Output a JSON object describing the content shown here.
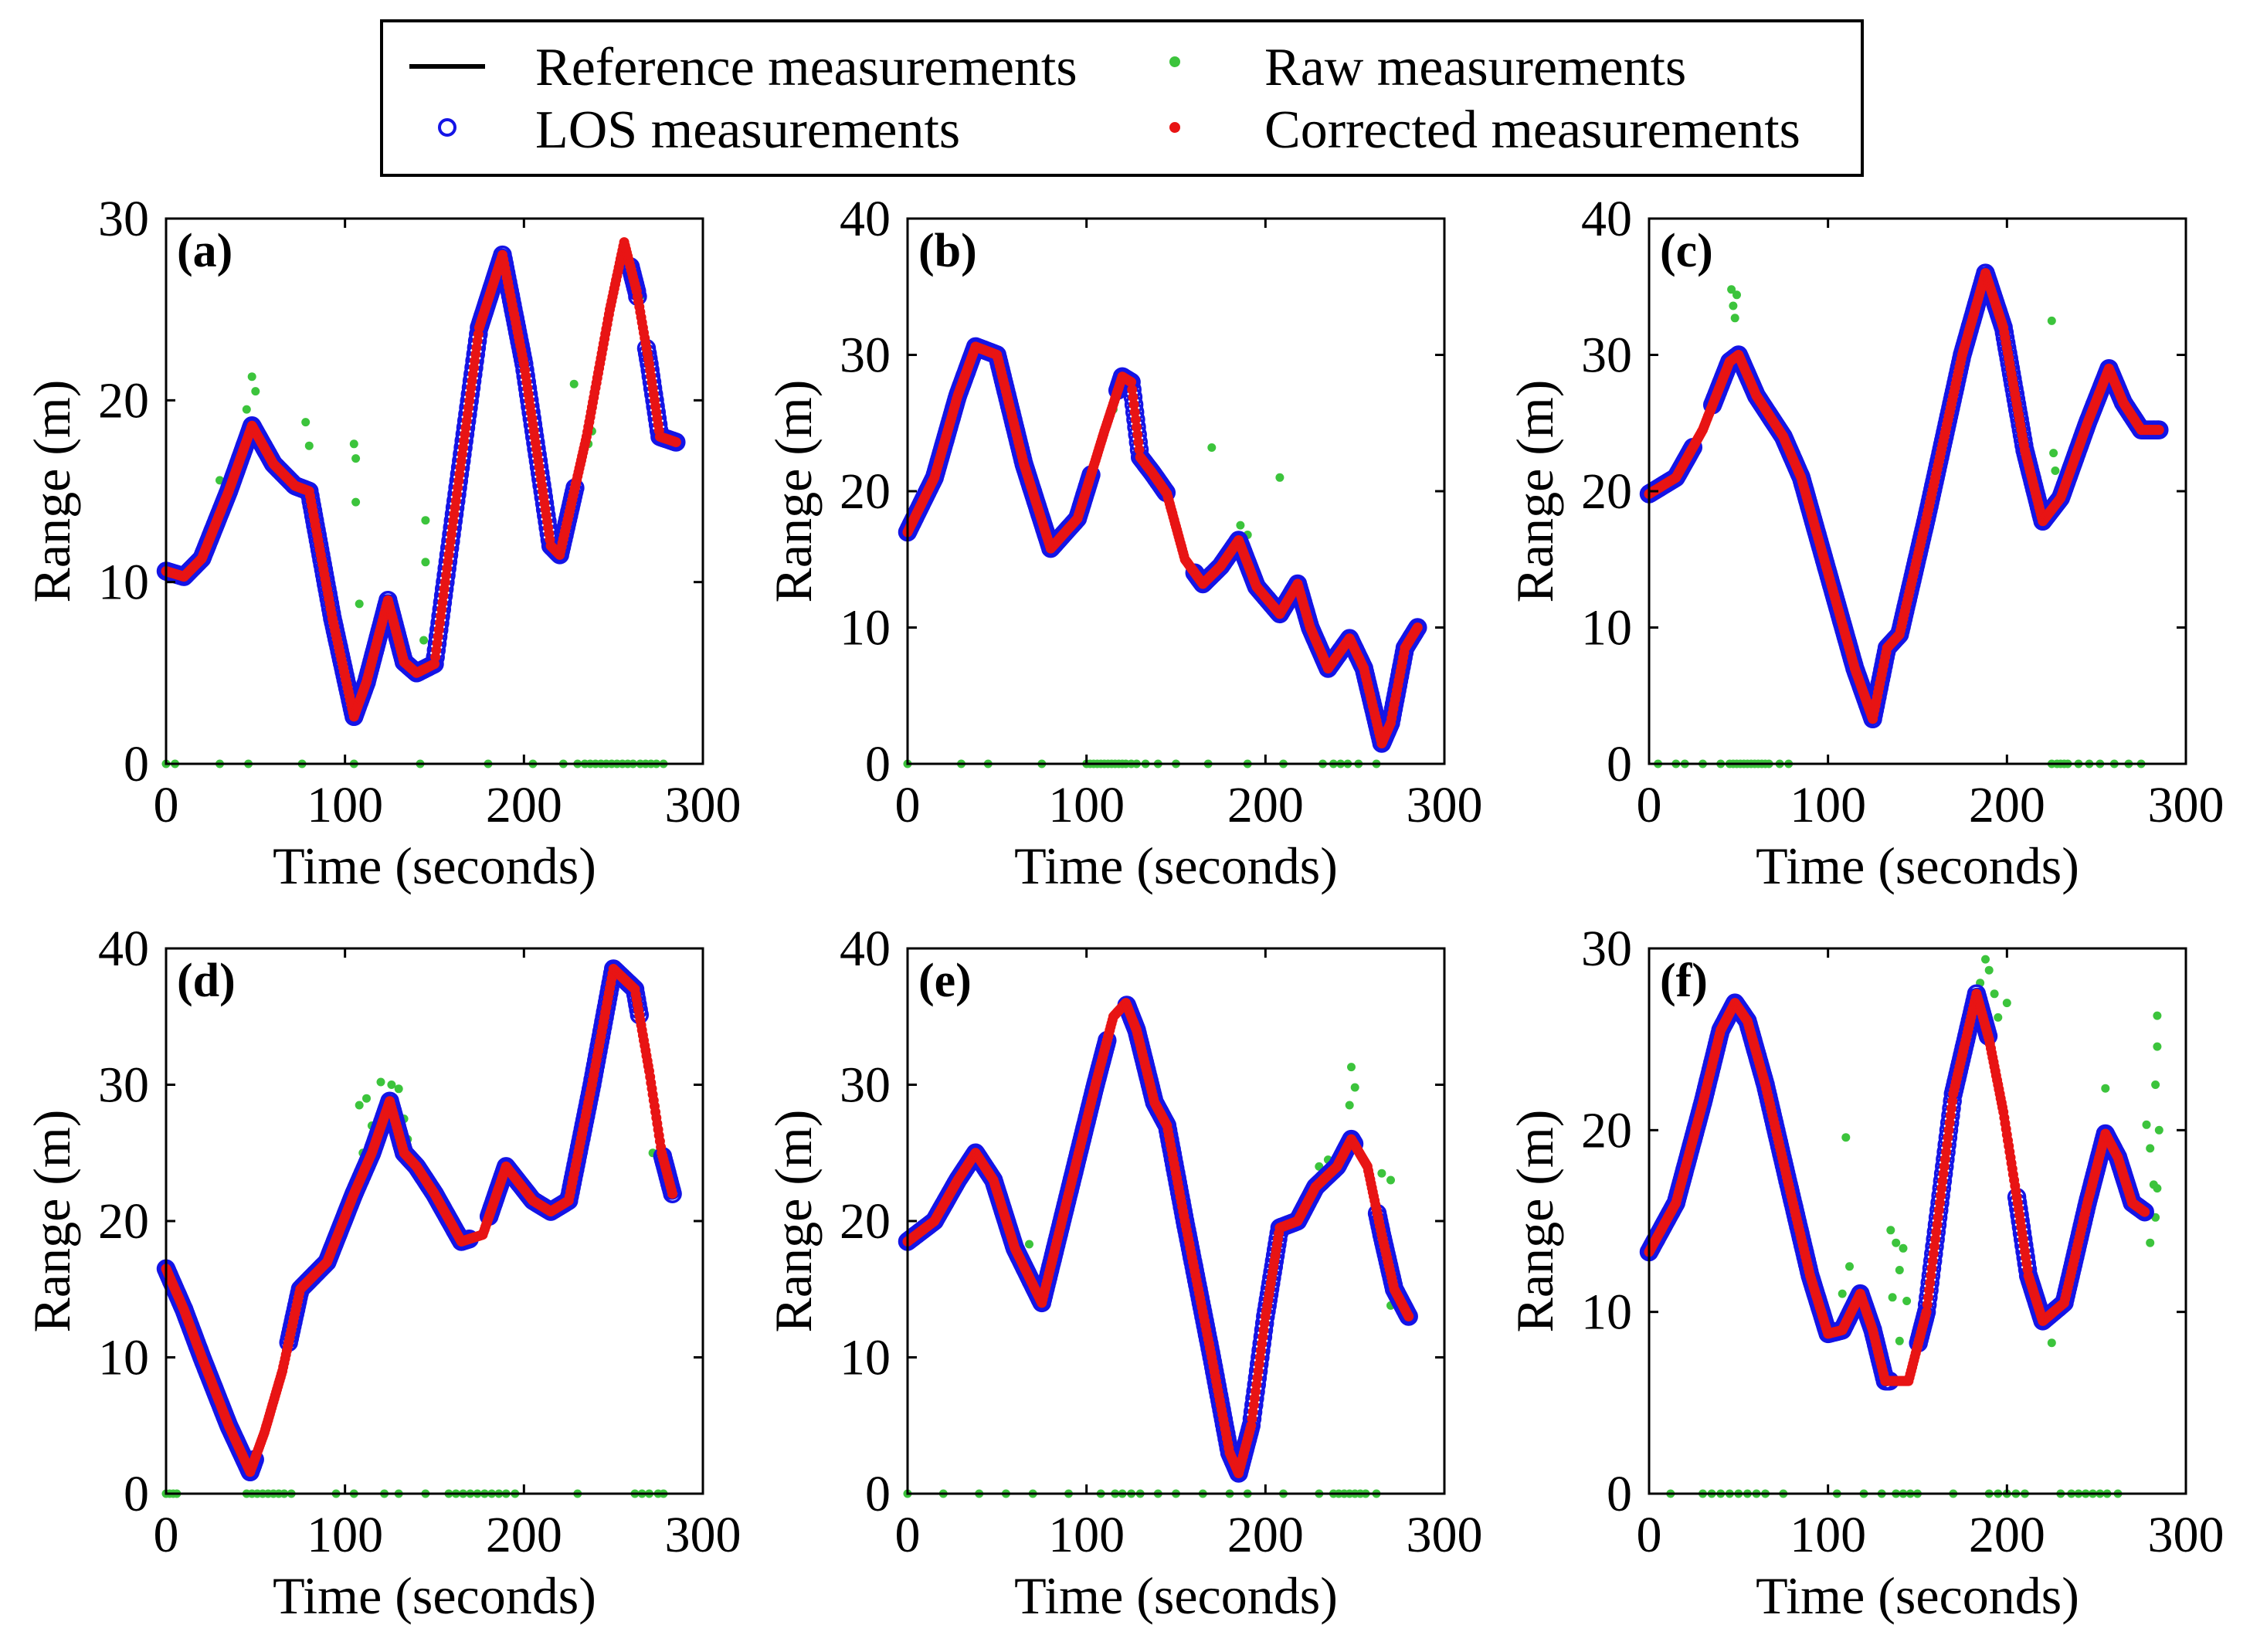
{
  "colors": {
    "reference": "#000000",
    "raw": "#3cc43c",
    "los": "#1414e6",
    "corrected": "#e81414"
  },
  "legend": {
    "items": [
      {
        "key": "reference",
        "label": "Reference measurements",
        "marker": "line"
      },
      {
        "key": "raw",
        "label": "Raw measurements",
        "marker": "dot"
      },
      {
        "key": "los",
        "label": "LOS measurements",
        "marker": "circle"
      },
      {
        "key": "corrected",
        "label": "Corrected measurements",
        "marker": "dot"
      }
    ]
  },
  "chart_data": [
    {
      "id": "a",
      "panel_label": "(a)",
      "type": "line",
      "xlabel": "Time (seconds)",
      "ylabel": "Range (m)",
      "xlim": [
        0,
        300
      ],
      "ylim": [
        0,
        30
      ],
      "xticks": [
        0,
        100,
        200,
        300
      ],
      "yticks": [
        0,
        10,
        20,
        30
      ],
      "reference": [
        [
          0,
          10.6
        ],
        [
          10,
          10.3
        ],
        [
          20,
          11.3
        ],
        [
          35,
          15
        ],
        [
          48,
          18.6
        ],
        [
          60,
          16.5
        ],
        [
          72,
          15.3
        ],
        [
          80,
          15
        ],
        [
          93,
          8
        ],
        [
          105,
          2.6
        ],
        [
          112,
          4.5
        ],
        [
          124,
          9
        ],
        [
          133,
          5.6
        ],
        [
          140,
          5
        ],
        [
          150,
          5.5
        ],
        [
          160,
          13
        ],
        [
          175,
          24
        ],
        [
          188,
          28
        ],
        [
          200,
          22
        ],
        [
          215,
          12
        ],
        [
          220,
          11.5
        ],
        [
          235,
          18
        ],
        [
          248,
          25
        ],
        [
          256,
          28.7
        ],
        [
          263,
          26
        ],
        [
          270,
          22
        ],
        [
          276,
          18
        ],
        [
          285,
          17.7
        ]
      ],
      "los_gaps": [
        [
          229,
          259
        ],
        [
          264,
          268
        ]
      ],
      "raw_extra": [
        [
          30,
          15.6
        ],
        [
          40,
          17
        ],
        [
          45,
          19.5
        ],
        [
          48,
          21.3
        ],
        [
          50,
          20.5
        ],
        [
          78,
          18.8
        ],
        [
          80,
          17.5
        ],
        [
          105,
          17.6
        ],
        [
          106,
          16.8
        ],
        [
          106,
          14.4
        ],
        [
          108,
          8.8
        ],
        [
          145,
          13.4
        ],
        [
          145,
          11.1
        ],
        [
          144,
          6.8
        ],
        [
          228,
          20.9
        ],
        [
          236,
          17.6
        ],
        [
          238,
          18.3
        ],
        [
          266,
          25.8
        ]
      ],
      "zero_raw": [
        0,
        5,
        30,
        46,
        76,
        105,
        142,
        180,
        205,
        222,
        230,
        234,
        237,
        240,
        243,
        246,
        249,
        252,
        255,
        258,
        261,
        265,
        268,
        271,
        274,
        278
      ]
    },
    {
      "id": "b",
      "panel_label": "(b)",
      "type": "line",
      "xlabel": "Time (seconds)",
      "ylabel": "Range (m)",
      "xlim": [
        0,
        300
      ],
      "ylim": [
        0,
        40
      ],
      "xticks": [
        0,
        100,
        200,
        300
      ],
      "yticks": [
        0,
        10,
        20,
        30,
        40
      ],
      "reference": [
        [
          0,
          17
        ],
        [
          15,
          21
        ],
        [
          28,
          27
        ],
        [
          38,
          30.6
        ],
        [
          50,
          30
        ],
        [
          65,
          22
        ],
        [
          80,
          15.8
        ],
        [
          95,
          18
        ],
        [
          110,
          24.4
        ],
        [
          120,
          28.4
        ],
        [
          125,
          28
        ],
        [
          130,
          22.5
        ],
        [
          137,
          21.3
        ],
        [
          145,
          19.8
        ],
        [
          155,
          15
        ],
        [
          165,
          13.2
        ],
        [
          175,
          14.5
        ],
        [
          185,
          16.4
        ],
        [
          195,
          13
        ],
        [
          208,
          11
        ],
        [
          218,
          13.2
        ],
        [
          225,
          10
        ],
        [
          235,
          7
        ],
        [
          247,
          9.2
        ],
        [
          255,
          7
        ],
        [
          265,
          1.5
        ],
        [
          270,
          3
        ],
        [
          278,
          8.5
        ],
        [
          285,
          10
        ]
      ],
      "los_gaps": [
        [
          103,
          117
        ],
        [
          145,
          160
        ]
      ],
      "raw_extra": [
        [
          115,
          26
        ],
        [
          118,
          28.2
        ],
        [
          170,
          23.2
        ],
        [
          186,
          17.5
        ],
        [
          190,
          16.8
        ],
        [
          208,
          21
        ],
        [
          190,
          15
        ]
      ],
      "zero_raw": [
        0,
        30,
        45,
        75,
        100,
        102,
        104,
        106,
        108,
        110,
        112,
        114,
        116,
        118,
        120,
        122,
        125,
        128,
        133,
        140,
        150,
        168,
        190,
        210,
        232,
        238,
        242,
        246,
        252,
        262
      ]
    },
    {
      "id": "c",
      "panel_label": "(c)",
      "type": "line",
      "xlabel": "Time (seconds)",
      "ylabel": "Range (m)",
      "xlim": [
        0,
        300
      ],
      "ylim": [
        0,
        40
      ],
      "xticks": [
        0,
        100,
        200,
        300
      ],
      "yticks": [
        0,
        10,
        20,
        30,
        40
      ],
      "reference": [
        [
          0,
          19.8
        ],
        [
          15,
          21
        ],
        [
          30,
          24.5
        ],
        [
          45,
          29.5
        ],
        [
          50,
          30
        ],
        [
          60,
          27
        ],
        [
          75,
          24
        ],
        [
          85,
          21
        ],
        [
          100,
          14
        ],
        [
          115,
          7
        ],
        [
          125,
          3.3
        ],
        [
          133,
          8.5
        ],
        [
          140,
          9.5
        ],
        [
          155,
          18
        ],
        [
          175,
          30
        ],
        [
          188,
          36
        ],
        [
          198,
          32
        ],
        [
          210,
          23
        ],
        [
          220,
          17.8
        ],
        [
          230,
          19.5
        ],
        [
          245,
          25
        ],
        [
          257,
          29
        ],
        [
          265,
          26.5
        ],
        [
          275,
          24.5
        ],
        [
          285,
          24.5
        ]
      ],
      "los_gaps": [
        [
          25,
          35
        ]
      ],
      "raw_extra": [
        [
          46,
          34.8
        ],
        [
          47,
          33.6
        ],
        [
          49,
          34.4
        ],
        [
          48,
          32.7
        ],
        [
          225,
          32.5
        ],
        [
          226,
          22.8
        ],
        [
          227,
          21.5
        ],
        [
          230,
          19
        ],
        [
          233,
          21
        ]
      ],
      "zero_raw": [
        5,
        15,
        20,
        30,
        40,
        45,
        47,
        49,
        51,
        53,
        55,
        57,
        59,
        61,
        63,
        65,
        67,
        73,
        78,
        225,
        228,
        230,
        232,
        234,
        240,
        246,
        252,
        260,
        268,
        275
      ]
    },
    {
      "id": "d",
      "panel_label": "(d)",
      "type": "line",
      "xlabel": "Time (seconds)",
      "ylabel": "Range (m)",
      "xlim": [
        0,
        300
      ],
      "ylim": [
        0,
        40
      ],
      "xticks": [
        0,
        100,
        200,
        300
      ],
      "yticks": [
        0,
        10,
        20,
        30,
        40
      ],
      "reference": [
        [
          0,
          16.5
        ],
        [
          10,
          13.5
        ],
        [
          20,
          10
        ],
        [
          35,
          5
        ],
        [
          47,
          1.6
        ],
        [
          55,
          4.5
        ],
        [
          65,
          9
        ],
        [
          75,
          15
        ],
        [
          90,
          17
        ],
        [
          105,
          22
        ],
        [
          115,
          25
        ],
        [
          125,
          28.8
        ],
        [
          133,
          25
        ],
        [
          140,
          24
        ],
        [
          150,
          22
        ],
        [
          165,
          18.5
        ],
        [
          177,
          19
        ],
        [
          190,
          24
        ],
        [
          205,
          21.5
        ],
        [
          215,
          20.7
        ],
        [
          225,
          21.5
        ],
        [
          238,
          30
        ],
        [
          250,
          38.5
        ],
        [
          262,
          37
        ],
        [
          270,
          31
        ],
        [
          277,
          25
        ],
        [
          283,
          22
        ]
      ],
      "los_gaps": [
        [
          50,
          68
        ],
        [
          170,
          180
        ],
        [
          265,
          277
        ]
      ],
      "raw_extra": [
        [
          108,
          28.5
        ],
        [
          112,
          29
        ],
        [
          115,
          27
        ],
        [
          120,
          30.2
        ],
        [
          126,
          30
        ],
        [
          130,
          29.7
        ],
        [
          133,
          27.5
        ],
        [
          135,
          26
        ],
        [
          110,
          25
        ],
        [
          112,
          24
        ],
        [
          272,
          25
        ]
      ],
      "zero_raw": [
        0,
        2,
        4,
        6,
        45,
        48,
        51,
        54,
        57,
        60,
        63,
        66,
        70,
        95,
        105,
        122,
        130,
        145,
        158,
        162,
        166,
        170,
        174,
        178,
        182,
        186,
        190,
        195,
        230,
        262,
        266,
        270,
        275,
        278
      ]
    },
    {
      "id": "e",
      "panel_label": "(e)",
      "type": "line",
      "xlabel": "Time (seconds)",
      "ylabel": "Range (m)",
      "xlim": [
        0,
        300
      ],
      "ylim": [
        0,
        40
      ],
      "xticks": [
        0,
        100,
        200,
        300
      ],
      "yticks": [
        0,
        10,
        20,
        30,
        40
      ],
      "reference": [
        [
          0,
          18.5
        ],
        [
          15,
          20
        ],
        [
          28,
          23
        ],
        [
          38,
          25
        ],
        [
          48,
          23
        ],
        [
          60,
          18
        ],
        [
          75,
          14
        ],
        [
          90,
          22
        ],
        [
          105,
          30
        ],
        [
          115,
          35
        ],
        [
          122,
          36
        ],
        [
          128,
          34
        ],
        [
          138,
          28.7
        ],
        [
          145,
          27
        ],
        [
          155,
          20
        ],
        [
          170,
          10
        ],
        [
          180,
          3
        ],
        [
          185,
          1.5
        ],
        [
          192,
          5
        ],
        [
          200,
          13
        ],
        [
          208,
          19.5
        ],
        [
          218,
          20
        ],
        [
          228,
          22.5
        ],
        [
          240,
          24
        ],
        [
          248,
          26
        ],
        [
          257,
          24
        ],
        [
          265,
          19
        ],
        [
          272,
          15
        ],
        [
          280,
          13
        ]
      ],
      "los_gaps": [
        [
          112,
          122
        ],
        [
          250,
          262
        ]
      ],
      "raw_extra": [
        [
          230,
          24
        ],
        [
          235,
          24.5
        ],
        [
          248,
          31.3
        ],
        [
          250,
          29.8
        ],
        [
          247,
          28.5
        ],
        [
          265,
          23.5
        ],
        [
          270,
          23
        ],
        [
          270,
          13.8
        ],
        [
          68,
          18.3
        ]
      ],
      "zero_raw": [
        0,
        20,
        40,
        55,
        70,
        90,
        108,
        116,
        120,
        125,
        130,
        140,
        150,
        165,
        180,
        190,
        210,
        230,
        238,
        241,
        244,
        247,
        250,
        253,
        256,
        262
      ]
    },
    {
      "id": "f",
      "panel_label": "(f)",
      "type": "line",
      "xlabel": "Time (seconds)",
      "ylabel": "Range (m)",
      "xlim": [
        0,
        300
      ],
      "ylim": [
        0,
        30
      ],
      "xticks": [
        0,
        100,
        200,
        300
      ],
      "yticks": [
        0,
        10,
        20,
        30
      ],
      "reference": [
        [
          0,
          13.3
        ],
        [
          15,
          16
        ],
        [
          30,
          21.5
        ],
        [
          40,
          25.5
        ],
        [
          48,
          27
        ],
        [
          55,
          26
        ],
        [
          65,
          22.5
        ],
        [
          78,
          17
        ],
        [
          90,
          12
        ],
        [
          100,
          8.8
        ],
        [
          108,
          9
        ],
        [
          118,
          11
        ],
        [
          125,
          9
        ],
        [
          132,
          6.2
        ],
        [
          145,
          6.2
        ],
        [
          155,
          10
        ],
        [
          170,
          22
        ],
        [
          183,
          27.5
        ],
        [
          190,
          25
        ],
        [
          198,
          21
        ],
        [
          206,
          16
        ],
        [
          212,
          12
        ],
        [
          220,
          9.5
        ],
        [
          232,
          10.5
        ],
        [
          245,
          16
        ],
        [
          255,
          19.8
        ],
        [
          262,
          18.5
        ],
        [
          270,
          16
        ],
        [
          277,
          15.5
        ]
      ],
      "los_gaps": [
        [
          135,
          150
        ],
        [
          190,
          205
        ]
      ],
      "raw_extra": [
        [
          35,
          24.3
        ],
        [
          38,
          23.5
        ],
        [
          40,
          25
        ],
        [
          28,
          21
        ],
        [
          25,
          19.5
        ],
        [
          110,
          19.6
        ],
        [
          112,
          12.5
        ],
        [
          108,
          11
        ],
        [
          135,
          14.5
        ],
        [
          138,
          13.8
        ],
        [
          140,
          12.3
        ],
        [
          142,
          13.5
        ],
        [
          136,
          10.8
        ],
        [
          140,
          8.4
        ],
        [
          144,
          10.6
        ],
        [
          188,
          29.4
        ],
        [
          190,
          28.8
        ],
        [
          185,
          28.1
        ],
        [
          193,
          27.5
        ],
        [
          200,
          27
        ],
        [
          195,
          26.2
        ],
        [
          225,
          8.3
        ],
        [
          255,
          22.3
        ],
        [
          284,
          26.3
        ],
        [
          284,
          24.6
        ],
        [
          283,
          22.5
        ],
        [
          285,
          20
        ],
        [
          280,
          19
        ],
        [
          282,
          17
        ],
        [
          284,
          16.8
        ],
        [
          283,
          15.2
        ],
        [
          280,
          13.8
        ],
        [
          278,
          20.3
        ]
      ],
      "zero_raw": [
        12,
        30,
        35,
        40,
        45,
        50,
        55,
        60,
        65,
        75,
        105,
        120,
        130,
        138,
        142,
        146,
        150,
        170,
        190,
        195,
        200,
        205,
        210,
        230,
        236,
        240,
        244,
        248,
        252,
        256,
        262
      ]
    }
  ]
}
